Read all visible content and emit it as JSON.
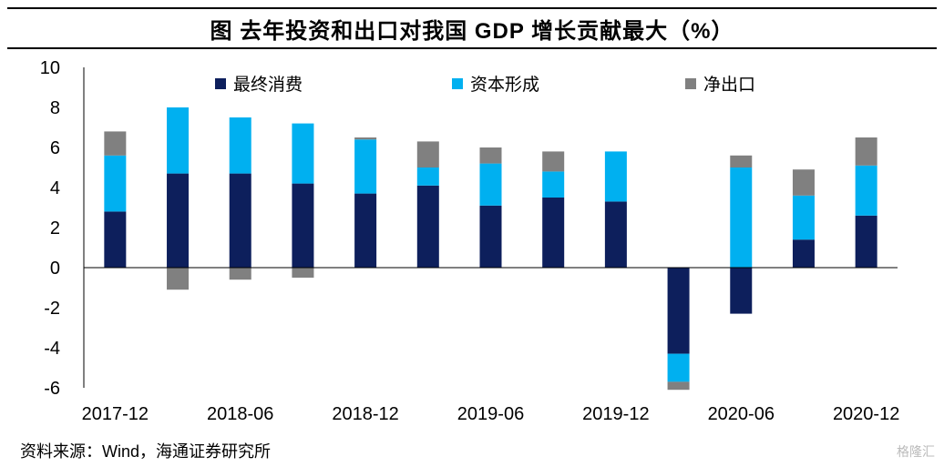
{
  "title": "图  去年投资和出口对我国 GDP 增长贡献最大（%）",
  "source": "资料来源：Wind，海通证券研究所",
  "watermark": "格隆汇",
  "chart_data": {
    "type": "bar",
    "stacked": true,
    "categories": [
      "2017-12",
      "2018-03",
      "2018-06",
      "2018-09",
      "2018-12",
      "2019-03",
      "2019-06",
      "2019-09",
      "2019-12",
      "2020-03",
      "2020-06",
      "2020-09",
      "2020-12"
    ],
    "x_tick_labels": [
      "2017-12",
      "2018-06",
      "2018-12",
      "2019-06",
      "2019-12",
      "2020-06",
      "2020-12"
    ],
    "ylim": [
      -6,
      10
    ],
    "y_ticks": [
      10,
      8,
      6,
      4,
      2,
      0,
      -2,
      -4,
      -6
    ],
    "legend_position": "top",
    "grid": false,
    "series": [
      {
        "name": "最终消费",
        "color": "#0d1f5c",
        "values": [
          2.8,
          4.7,
          4.7,
          4.2,
          3.7,
          4.1,
          3.1,
          3.5,
          3.3,
          -4.3,
          -2.3,
          1.4,
          2.6
        ]
      },
      {
        "name": "资本形成",
        "color": "#00b0f0",
        "values": [
          2.8,
          3.3,
          2.8,
          3.0,
          2.7,
          0.9,
          2.1,
          1.3,
          2.5,
          -1.4,
          5.0,
          2.2,
          2.5
        ]
      },
      {
        "name": "净出口",
        "color": "#808080",
        "values": [
          1.2,
          -1.1,
          -0.6,
          -0.5,
          0.1,
          1.3,
          0.8,
          1.0,
          0.0,
          -0.4,
          0.6,
          1.3,
          1.4
        ]
      }
    ]
  }
}
